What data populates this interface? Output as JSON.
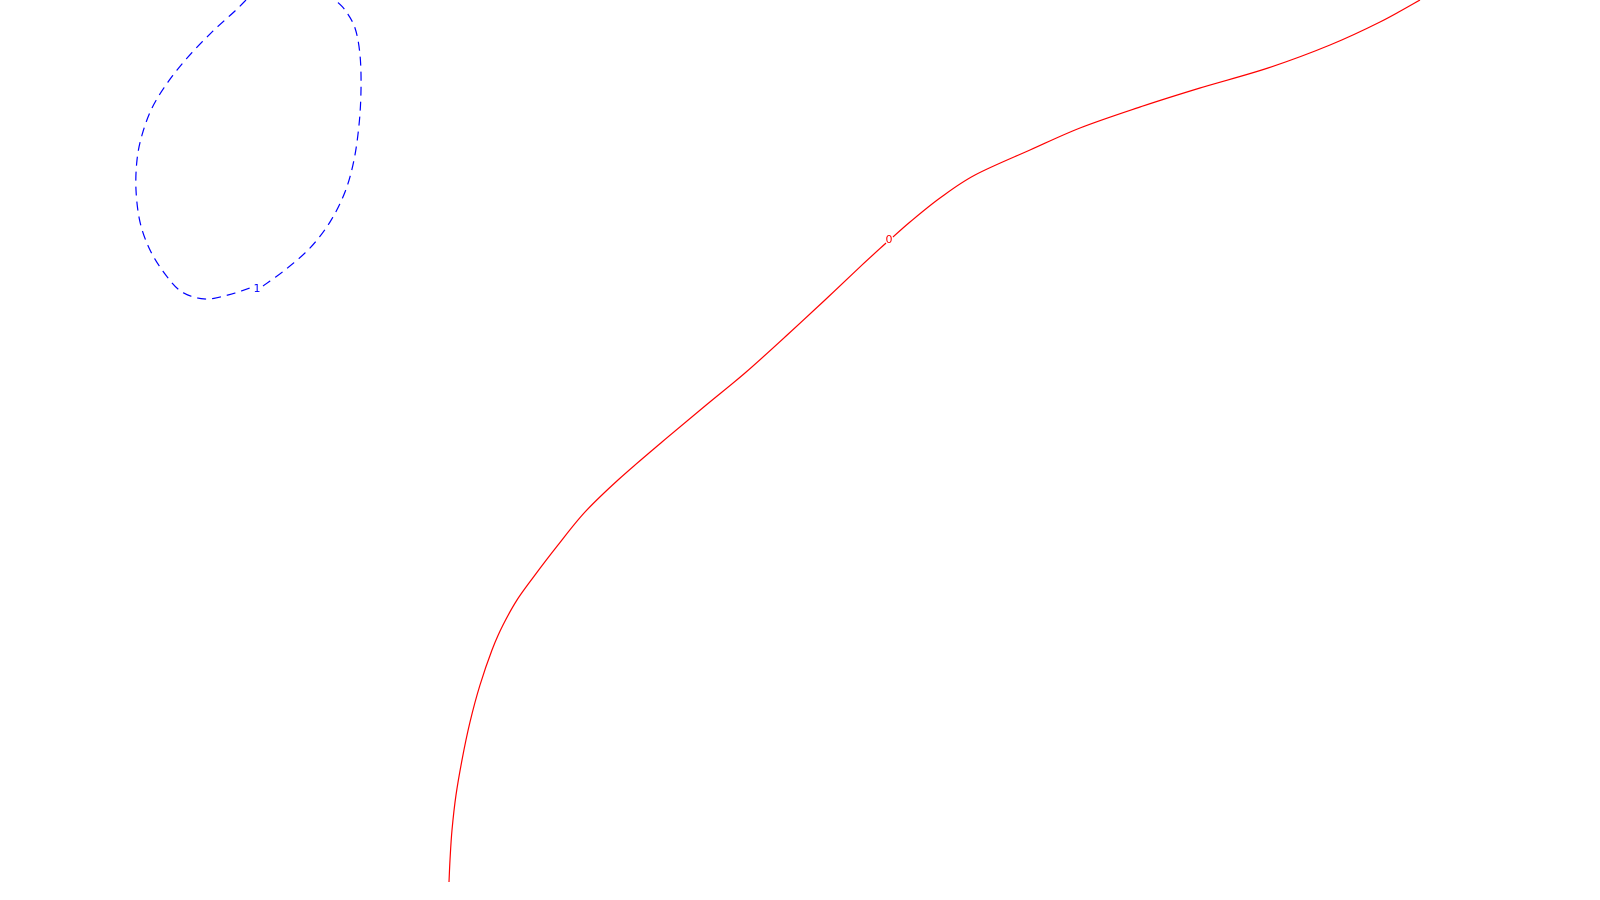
{
  "chart_data": {
    "type": "contour",
    "grid": false,
    "legend": "none",
    "series": [
      {
        "level_label": "0",
        "color": "#ff0000",
        "line_style": "solid",
        "values": [
          [
            449,
            882
          ],
          [
            450,
            860
          ],
          [
            452,
            830
          ],
          [
            456,
            795
          ],
          [
            462,
            760
          ],
          [
            470,
            722
          ],
          [
            480,
            685
          ],
          [
            492,
            650
          ],
          [
            503,
            625
          ],
          [
            517,
            600
          ],
          [
            535,
            575
          ],
          [
            558,
            545
          ],
          [
            585,
            512
          ],
          [
            618,
            480
          ],
          [
            662,
            442
          ],
          [
            705,
            406
          ],
          [
            745,
            373
          ],
          [
            785,
            337
          ],
          [
            825,
            300
          ],
          [
            862,
            265
          ],
          [
            886,
            243
          ]
        ]
      },
      {
        "level_label": "0",
        "color": "#ff0000",
        "line_style": "solid",
        "values": [
          [
            893,
            237
          ],
          [
            910,
            222
          ],
          [
            940,
            198
          ],
          [
            975,
            175
          ],
          [
            1030,
            150
          ],
          [
            1080,
            128
          ],
          [
            1140,
            107
          ],
          [
            1200,
            88
          ],
          [
            1268,
            68
          ],
          [
            1330,
            45
          ],
          [
            1380,
            22
          ],
          [
            1420,
            0
          ]
        ]
      },
      {
        "level_label": "1",
        "color": "#0000ff",
        "line_style": "dashed",
        "values": [
          [
            246,
            0
          ],
          [
            235,
            11
          ],
          [
            212,
            32
          ],
          [
            188,
            57
          ],
          [
            168,
            82
          ],
          [
            152,
            108
          ],
          [
            142,
            135
          ],
          [
            137,
            160
          ],
          [
            136,
            190
          ],
          [
            140,
            222
          ],
          [
            150,
            250
          ],
          [
            165,
            274
          ],
          [
            182,
            292
          ],
          [
            205,
            299
          ],
          [
            228,
            295
          ],
          [
            250,
            288
          ]
        ]
      },
      {
        "level_label": "1",
        "color": "#0000ff",
        "line_style": "dashed",
        "values": [
          [
            263,
            286
          ],
          [
            285,
            270
          ],
          [
            310,
            248
          ],
          [
            330,
            222
          ],
          [
            345,
            192
          ],
          [
            354,
            160
          ],
          [
            359,
            125
          ],
          [
            361,
            90
          ],
          [
            360,
            55
          ],
          [
            355,
            28
          ],
          [
            345,
            10
          ],
          [
            335,
            0
          ]
        ]
      }
    ],
    "contour_labels": [
      {
        "text": "0",
        "color": "#ff0000",
        "position": [
          889,
          240
        ]
      },
      {
        "text": "1",
        "color": "#0000ff",
        "position": [
          257,
          289
        ]
      }
    ]
  }
}
